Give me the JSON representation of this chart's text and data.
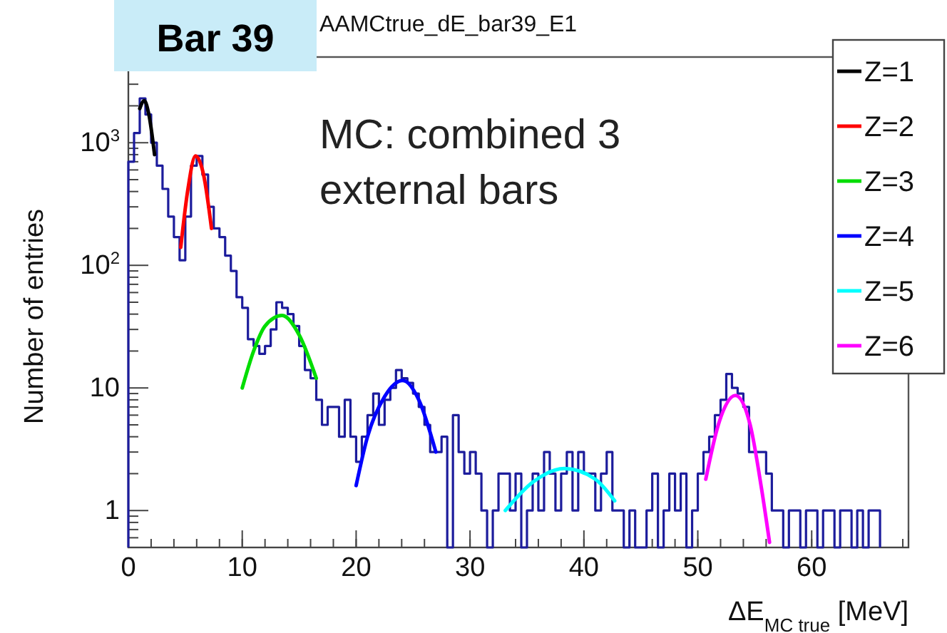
{
  "chart_data": {
    "type": "histogram",
    "title": "AAMCtrue_dE_bar39_E1",
    "xlabel": "ΔE$_{MC true}$ [MeV]",
    "ylabel": "Number of entries",
    "annotations": [
      "Bar 39",
      "MC: combined 3\nexternal bars"
    ],
    "bins": [
      0,
      0.5,
      1,
      1.5,
      2,
      2.5,
      3,
      3.5,
      4,
      4.5,
      5,
      5.5,
      6,
      6.5,
      7,
      7.5,
      8,
      8.5,
      9,
      9.5,
      10,
      10.5,
      11,
      11.5,
      12,
      12.5,
      13,
      13.5,
      14,
      14.5,
      15,
      15.5,
      16,
      16.5,
      17,
      17.5,
      18,
      18.5,
      19,
      19.5,
      20,
      20.5,
      21,
      21.5,
      22,
      22.5,
      23,
      23.5,
      24,
      24.5,
      25,
      25.5,
      26,
      26.5,
      27,
      27.5,
      28,
      28.5,
      29,
      29.5,
      30,
      30.5,
      31,
      31.5,
      32,
      32.5,
      33,
      33.5,
      34,
      34.5,
      35,
      35.5,
      36,
      36.5,
      37,
      37.5,
      38,
      38.5,
      39,
      39.5,
      40,
      40.5,
      41,
      41.5,
      42,
      42.5,
      43,
      43.5,
      44,
      44.5,
      45,
      45.5,
      46,
      46.5,
      47,
      47.5,
      48,
      48.5,
      49,
      49.5,
      50,
      50.5,
      51,
      51.5,
      52,
      52.5,
      53,
      53.5,
      54,
      54.5,
      55,
      55.5,
      56,
      56.5,
      57,
      57.5,
      58,
      58.5,
      59,
      59.5,
      60,
      60.5,
      61,
      61.5,
      62,
      62.5,
      63,
      63.5,
      64,
      64.5,
      65,
      65.5,
      66
    ],
    "values": [
      700,
      1200,
      2300,
      1700,
      1000,
      650,
      420,
      250,
      170,
      110,
      250,
      650,
      780,
      550,
      300,
      200,
      170,
      120,
      90,
      55,
      45,
      25,
      22,
      19,
      22,
      30,
      50,
      45,
      40,
      32,
      22,
      14,
      12,
      8,
      5,
      7,
      7,
      4,
      8,
      4,
      2.5,
      4,
      6,
      9,
      5,
      8,
      10,
      14,
      12,
      11,
      9,
      7,
      5,
      3,
      3,
      4,
      null,
      6,
      3,
      2,
      3,
      2,
      1,
      null,
      1,
      2,
      2,
      1,
      2,
      null,
      1,
      2,
      1,
      3,
      2,
      1,
      2,
      3,
      1,
      3,
      2,
      2,
      1,
      2,
      3,
      1,
      1,
      null,
      1,
      null,
      null,
      1,
      2,
      null,
      1,
      2,
      1,
      2,
      null,
      1,
      2,
      3,
      4,
      6,
      8,
      13,
      10,
      9,
      7,
      3,
      3,
      3,
      2,
      1,
      1,
      null,
      1,
      1,
      null,
      1,
      1,
      null,
      1,
      1,
      null,
      1,
      1,
      null,
      1,
      null,
      1,
      1
    ],
    "color": "#1c1c9c",
    "series": [
      {
        "type": "line",
        "name": "Z=1",
        "color": "#000000",
        "x": [
          1.0,
          1.4,
          1.8,
          2.3
        ],
        "values": [
          1900,
          2200,
          1700,
          800
        ]
      },
      {
        "type": "line",
        "name": "Z=2",
        "color": "#ff0000",
        "x": [
          4.6,
          5.2,
          5.9,
          6.6,
          7.3
        ],
        "values": [
          140,
          400,
          780,
          550,
          200
        ]
      },
      {
        "type": "line",
        "name": "Z=3",
        "color": "#00dd00",
        "x": [
          10.0,
          11.0,
          12.0,
          13.5,
          15.0,
          16.5
        ],
        "values": [
          10,
          20,
          32,
          39,
          27,
          12
        ]
      },
      {
        "type": "line",
        "name": "Z=4",
        "color": "#0000ff",
        "x": [
          20.0,
          21.0,
          22.5,
          24.1,
          25.5,
          27.0
        ],
        "values": [
          1.6,
          4,
          8.5,
          11.5,
          8,
          3
        ]
      },
      {
        "type": "line",
        "name": "Z=5",
        "color": "#00ffff",
        "x": [
          33.1,
          35.5,
          38.3,
          41.0,
          42.7
        ],
        "values": [
          1.0,
          1.7,
          2.2,
          1.8,
          1.2
        ]
      },
      {
        "type": "line",
        "name": "Z=6",
        "color": "#ff00ff",
        "x": [
          50.7,
          51.8,
          53.3,
          54.6,
          55.6,
          56.3
        ],
        "values": [
          1.8,
          5,
          8.7,
          5,
          1.5,
          0.55
        ]
      }
    ],
    "xlim": [
      0,
      68.5
    ],
    "xticks": [
      0,
      10,
      20,
      30,
      40,
      50,
      60
    ],
    "ylim": [
      0.5,
      5000
    ],
    "log": true,
    "yticks": [
      1,
      10,
      {
        "value": 100,
        "label": "10$^{2}$"
      },
      {
        "value": 1000,
        "label": "10$^{3}$"
      }
    ],
    "legend": "top right",
    "grid": false
  }
}
